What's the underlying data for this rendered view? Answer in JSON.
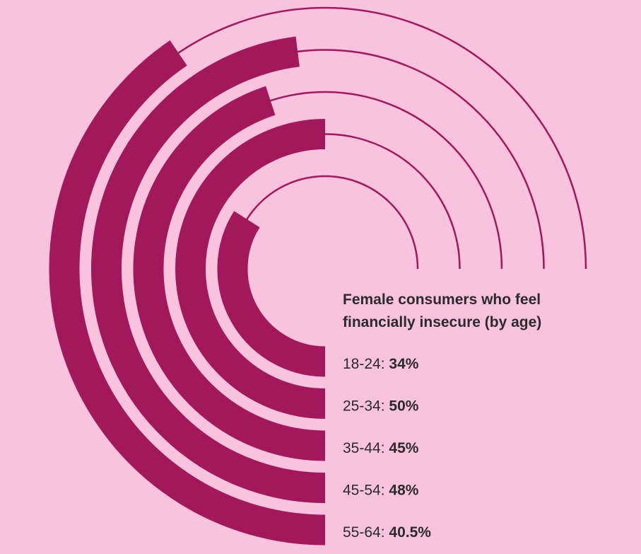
{
  "chart_data": {
    "type": "radial-bar",
    "title": "Female consumers who feel financially insecure (by age)",
    "categories": [
      "18-24:",
      "25-34:",
      "35-44:",
      "45-54:",
      "55-64:"
    ],
    "values": [
      34,
      50,
      45,
      48,
      40.5
    ],
    "value_labels": [
      "34%",
      "50%",
      "45%",
      "48%",
      "40.5%"
    ],
    "ylim": [
      0,
      100
    ],
    "color": "#a3185a"
  }
}
